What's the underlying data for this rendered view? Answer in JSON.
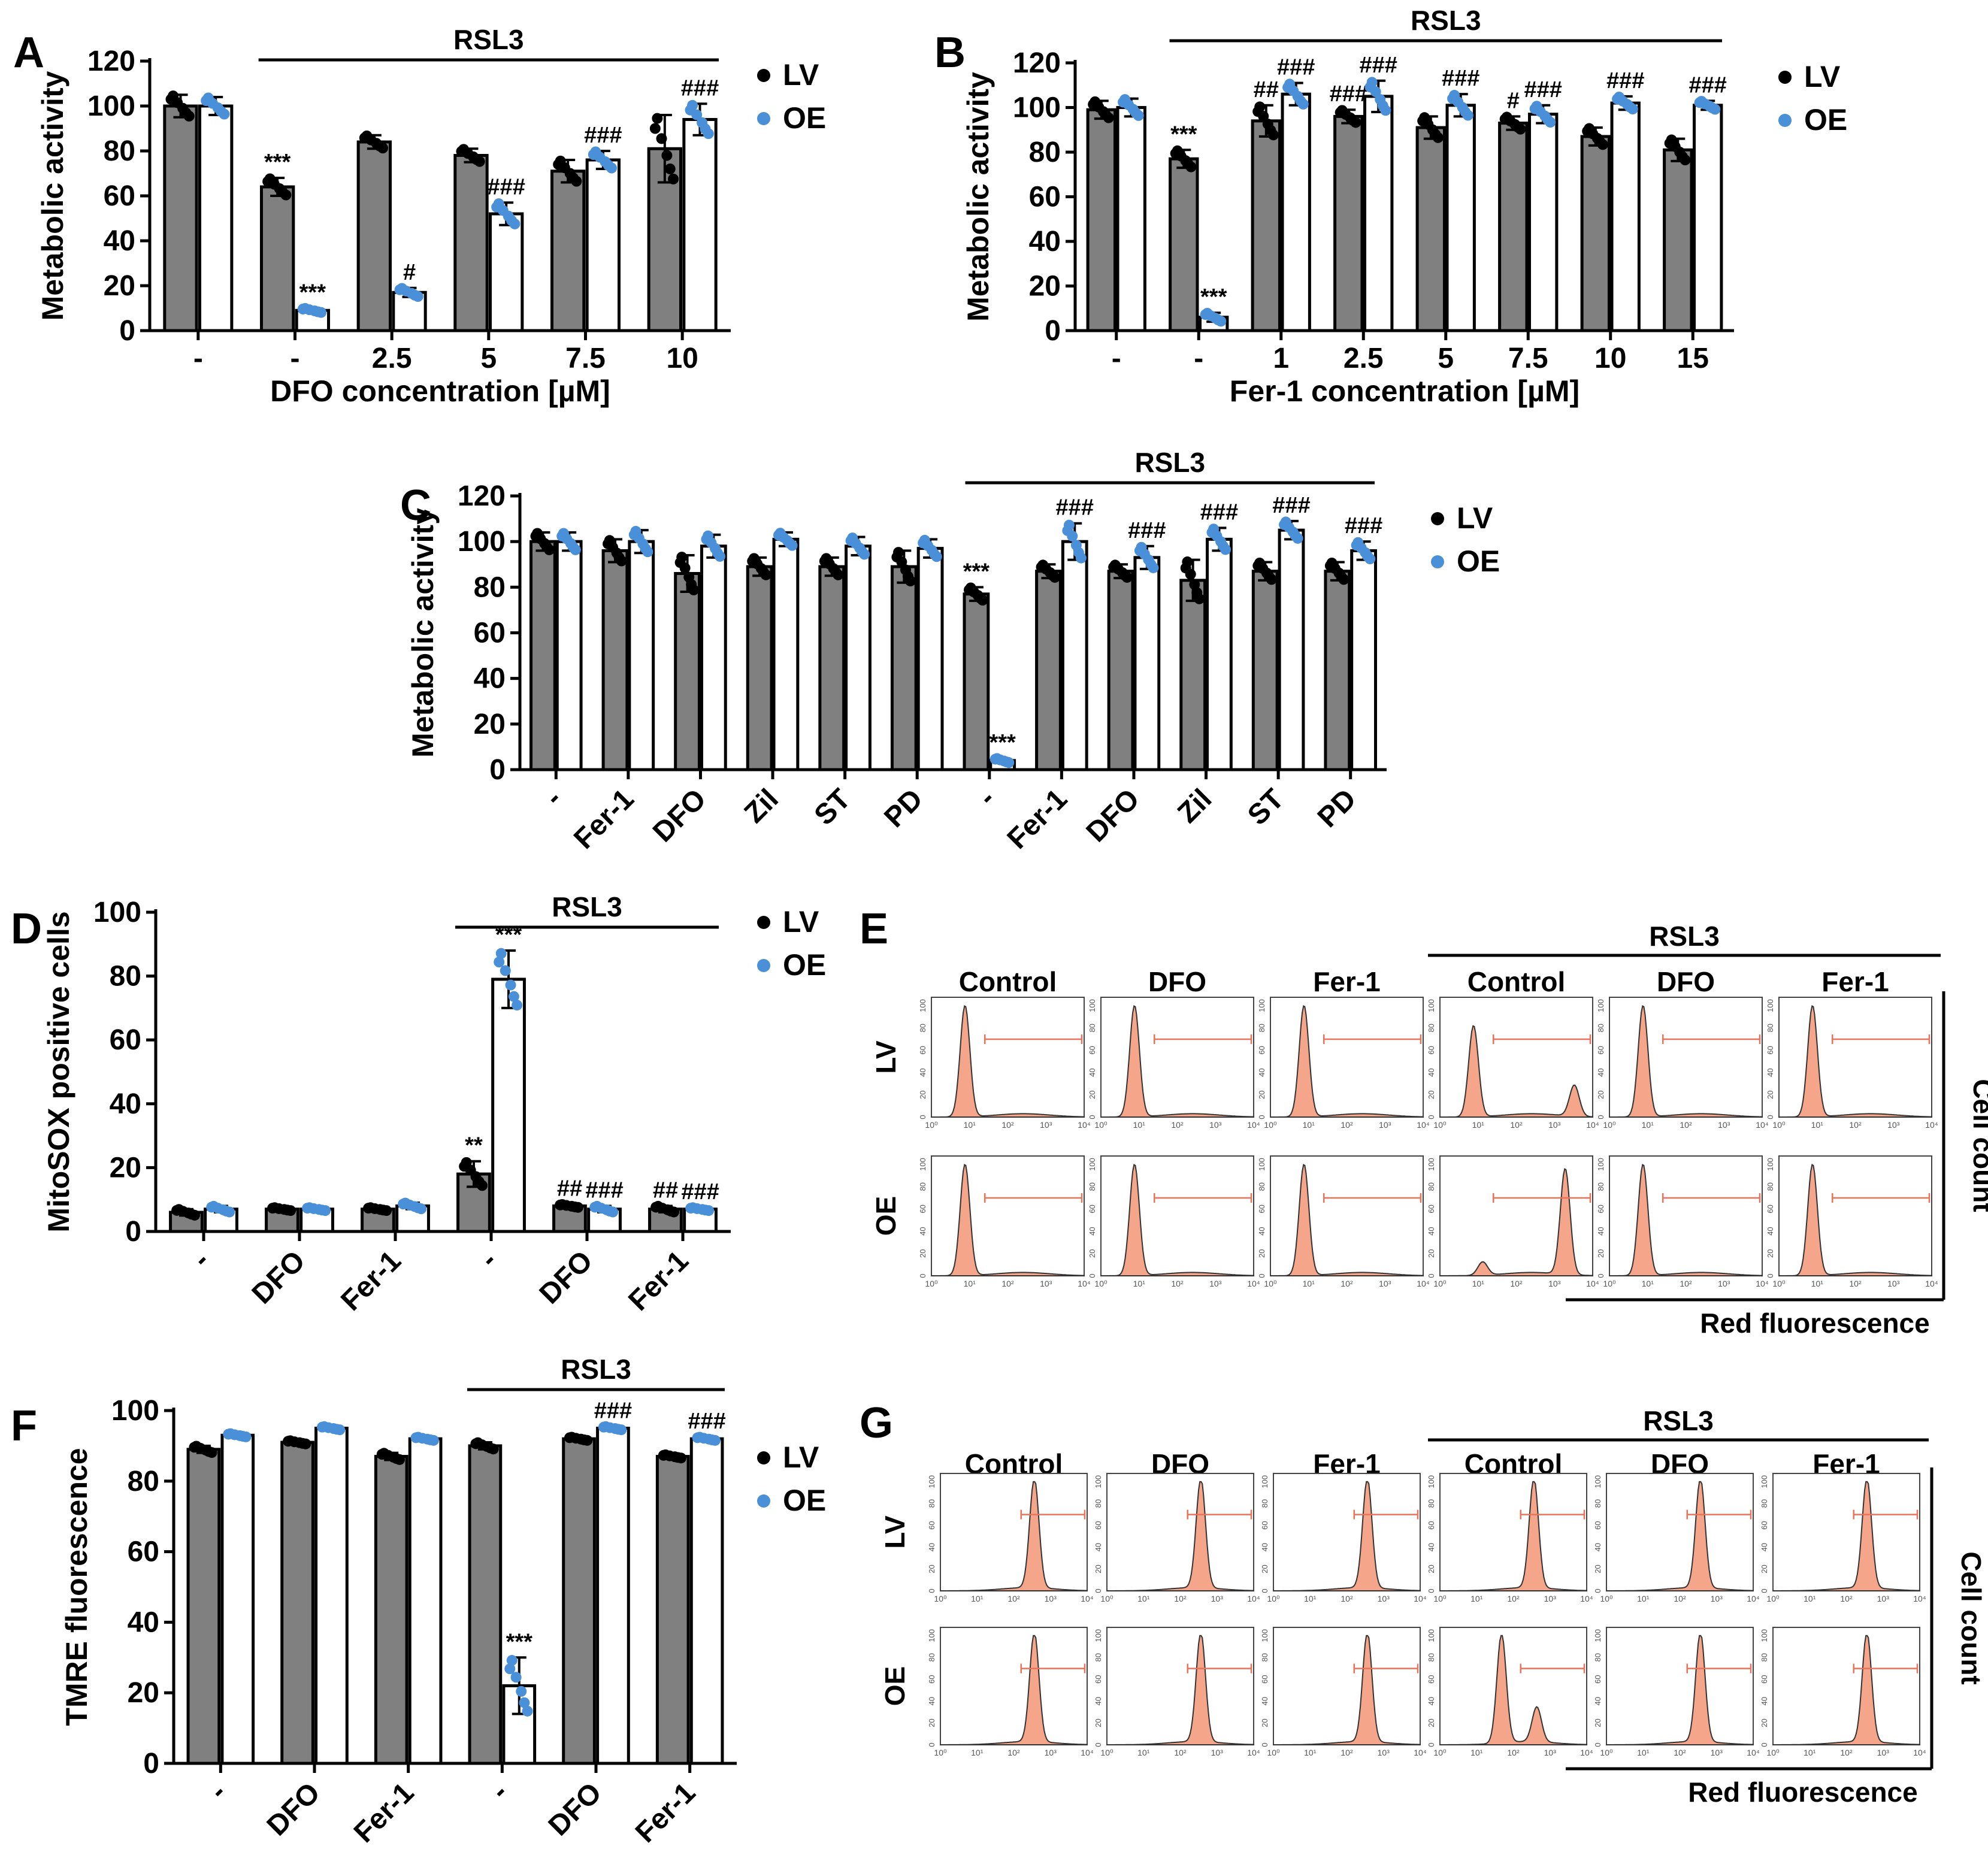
{
  "colors": {
    "lv_bar": "#808080",
    "oe_bar": "#ffffff",
    "lv_dot": "#000000",
    "oe_dot": "#4a90d9",
    "histogram": "#f4a58a",
    "gate": "#e8735a"
  },
  "legend": {
    "lv": "LV",
    "oe": "OE"
  },
  "chart_data": [
    {
      "id": "A",
      "type": "bar",
      "letter": "A",
      "ylabel": "Metabolic activity",
      "xlabel": "DFO concentration [µM]",
      "ylim": [
        0,
        120
      ],
      "yticks": [
        "0",
        "20",
        "40",
        "60",
        "80",
        "100",
        "120"
      ],
      "categories": [
        "-",
        "-",
        "2.5",
        "5",
        "7.5",
        "10"
      ],
      "treatment_bar": {
        "label": "RSL3",
        "from": 1,
        "to": 5
      },
      "series": [
        {
          "name": "LV",
          "values": [
            100,
            64,
            84,
            78,
            71,
            81
          ],
          "err": [
            5,
            4,
            3,
            3,
            5,
            15
          ],
          "sig": [
            "",
            "***",
            "",
            "",
            "",
            ""
          ]
        },
        {
          "name": "OE",
          "values": [
            100,
            9,
            17,
            52,
            76,
            94
          ],
          "err": [
            4,
            1,
            2,
            5,
            4,
            7
          ],
          "sig": [
            "",
            "***",
            "#",
            "###",
            "###",
            "###"
          ]
        }
      ]
    },
    {
      "id": "B",
      "type": "bar",
      "letter": "B",
      "ylabel": "Metabolic activity",
      "xlabel": "Fer-1 concentration [µM]",
      "ylim": [
        0,
        120
      ],
      "yticks": [
        "0",
        "20",
        "40",
        "60",
        "80",
        "100",
        "120"
      ],
      "categories": [
        "-",
        "-",
        "1",
        "2.5",
        "5",
        "7.5",
        "10",
        "15"
      ],
      "treatment_bar": {
        "label": "RSL3",
        "from": 1,
        "to": 7
      },
      "series": [
        {
          "name": "LV",
          "values": [
            99,
            77,
            94,
            96,
            91,
            93,
            87,
            81
          ],
          "err": [
            4,
            4,
            7,
            3,
            5,
            3,
            4,
            5
          ],
          "sig": [
            "",
            "***",
            "##",
            "###",
            "",
            "#",
            "",
            ""
          ]
        },
        {
          "name": "OE",
          "values": [
            100,
            6,
            106,
            105,
            101,
            97,
            102,
            101
          ],
          "err": [
            4,
            2,
            5,
            7,
            5,
            4,
            3,
            2
          ],
          "sig": [
            "",
            "***",
            "###",
            "###",
            "###",
            "###",
            "###",
            "###"
          ]
        }
      ]
    },
    {
      "id": "C",
      "type": "bar",
      "letter": "C",
      "ylabel": "Metabolic activity",
      "xlabel": "",
      "ylim": [
        0,
        120
      ],
      "yticks": [
        "0",
        "20",
        "40",
        "60",
        "80",
        "100",
        "120"
      ],
      "categories": [
        "-",
        "Fer-1",
        "DFO",
        "Zil",
        "ST",
        "PD",
        "-",
        "Fer-1",
        "DFO",
        "Zil",
        "ST",
        "PD"
      ],
      "rotate_ticks": true,
      "treatment_bar": {
        "label": "RSL3",
        "from": 6,
        "to": 11
      },
      "series": [
        {
          "name": "LV",
          "values": [
            100,
            96,
            86,
            89,
            89,
            89,
            77,
            87,
            87,
            83,
            87,
            87
          ],
          "err": [
            4,
            5,
            8,
            4,
            4,
            7,
            3,
            3,
            3,
            9,
            4,
            4
          ],
          "sig": [
            "",
            "",
            "",
            "",
            "",
            "",
            "***",
            "",
            "",
            "",
            "",
            ""
          ]
        },
        {
          "name": "OE",
          "values": [
            100,
            100,
            98,
            101,
            98,
            97,
            4,
            100,
            93,
            101,
            105,
            96
          ],
          "err": [
            4,
            5,
            5,
            3,
            4,
            4,
            1,
            8,
            5,
            5,
            4,
            4
          ],
          "sig": [
            "",
            "",
            "",
            "",
            "",
            "",
            "***",
            "###",
            "###",
            "###",
            "###",
            "###"
          ]
        }
      ]
    },
    {
      "id": "D",
      "type": "bar",
      "letter": "D",
      "ylabel": "MitoSOX positive cells",
      "xlabel": "",
      "ylim": [
        0,
        100
      ],
      "yticks": [
        "0",
        "20",
        "40",
        "60",
        "80",
        "100"
      ],
      "categories": [
        "-",
        "DFO",
        "Fer-1",
        "-",
        "DFO",
        "Fer-1"
      ],
      "rotate_ticks": true,
      "treatment_bar": {
        "label": "RSL3",
        "from": 3,
        "to": 5
      },
      "series": [
        {
          "name": "LV",
          "values": [
            6,
            7,
            7,
            18,
            8,
            7
          ],
          "err": [
            1,
            0.5,
            0.5,
            4,
            0.5,
            1
          ],
          "sig": [
            "",
            "",
            "",
            "**",
            "##",
            "##"
          ]
        },
        {
          "name": "OE",
          "values": [
            7,
            7,
            8,
            79,
            7,
            7
          ],
          "err": [
            1,
            0.5,
            1,
            9,
            1,
            0.5
          ],
          "sig": [
            "",
            "",
            "",
            "***",
            "###",
            "###"
          ]
        }
      ]
    },
    {
      "id": "F",
      "type": "bar",
      "letter": "F",
      "ylabel": "TMRE fluorescence",
      "xlabel": "",
      "ylim": [
        0,
        100
      ],
      "yticks": [
        "0",
        "20",
        "40",
        "60",
        "80",
        "100"
      ],
      "categories": [
        "-",
        "DFO",
        "Fer-1",
        "-",
        "DFO",
        "Fer-1"
      ],
      "rotate_ticks": true,
      "treatment_bar": {
        "label": "RSL3",
        "from": 3,
        "to": 5
      },
      "series": [
        {
          "name": "LV",
          "values": [
            89,
            91,
            87,
            90,
            92,
            87
          ],
          "err": [
            1,
            0.5,
            1,
            1,
            0.5,
            0.5
          ],
          "sig": [
            "",
            "",
            "",
            "",
            "",
            ""
          ]
        },
        {
          "name": "OE",
          "values": [
            93,
            95,
            92,
            22,
            95,
            92
          ],
          "err": [
            0.5,
            0.5,
            0.5,
            8,
            0.5,
            0.5
          ],
          "sig": [
            "",
            "",
            "",
            "***",
            "###",
            "###"
          ]
        }
      ]
    }
  ],
  "flow_panels": [
    {
      "id": "E",
      "letter": "E",
      "columns": [
        "Control",
        "DFO",
        "Fer-1",
        "Control",
        "DFO",
        "Fer-1"
      ],
      "treatment_bar": {
        "label": "RSL3",
        "from": 3,
        "to": 5
      },
      "rows": [
        "LV",
        "OE"
      ],
      "yaxis_title": "Cell count",
      "xaxis_title": "Red fluorescence",
      "xtick_labels": [
        "10⁰",
        "10¹",
        "10²",
        "10³",
        "10⁴"
      ],
      "ytick_labels": [
        "0",
        "20",
        "40",
        "60",
        "80",
        "100"
      ],
      "peaks": [
        [
          [
            0.22,
            1
          ]
        ],
        [
          [
            0.22,
            1
          ]
        ],
        [
          [
            0.22,
            1
          ]
        ],
        [
          [
            0.22,
            0.82
          ],
          [
            0.88,
            0.28
          ]
        ],
        [
          [
            0.22,
            1
          ]
        ],
        [
          [
            0.22,
            1
          ]
        ],
        [
          [
            0.22,
            1
          ]
        ],
        [
          [
            0.22,
            1
          ]
        ],
        [
          [
            0.22,
            1
          ]
        ],
        [
          [
            0.28,
            0.12
          ],
          [
            0.82,
            0.95
          ]
        ],
        [
          [
            0.22,
            1
          ]
        ],
        [
          [
            0.22,
            1
          ]
        ]
      ]
    },
    {
      "id": "G",
      "letter": "G",
      "columns": [
        "Control",
        "DFO",
        "Fer-1",
        "Control",
        "DFO",
        "Fer-1"
      ],
      "treatment_bar": {
        "label": "RSL3",
        "from": 3,
        "to": 5
      },
      "rows": [
        "LV",
        "OE"
      ],
      "yaxis_title": "Cell count",
      "xaxis_title": "Red fluorescence",
      "xtick_labels": [
        "10⁰",
        "10¹",
        "10²",
        "10³",
        "10⁴"
      ],
      "ytick_labels": [
        "0",
        "20",
        "40",
        "60",
        "80",
        "100"
      ],
      "peaks": [
        [
          [
            0.64,
            1
          ]
        ],
        [
          [
            0.64,
            1
          ]
        ],
        [
          [
            0.64,
            1
          ]
        ],
        [
          [
            0.64,
            1
          ]
        ],
        [
          [
            0.64,
            1
          ]
        ],
        [
          [
            0.64,
            1
          ]
        ],
        [
          [
            0.64,
            1
          ]
        ],
        [
          [
            0.64,
            1
          ]
        ],
        [
          [
            0.64,
            1
          ]
        ],
        [
          [
            0.42,
            1
          ],
          [
            0.66,
            0.32
          ]
        ],
        [
          [
            0.64,
            1
          ]
        ],
        [
          [
            0.64,
            1
          ]
        ]
      ]
    }
  ]
}
